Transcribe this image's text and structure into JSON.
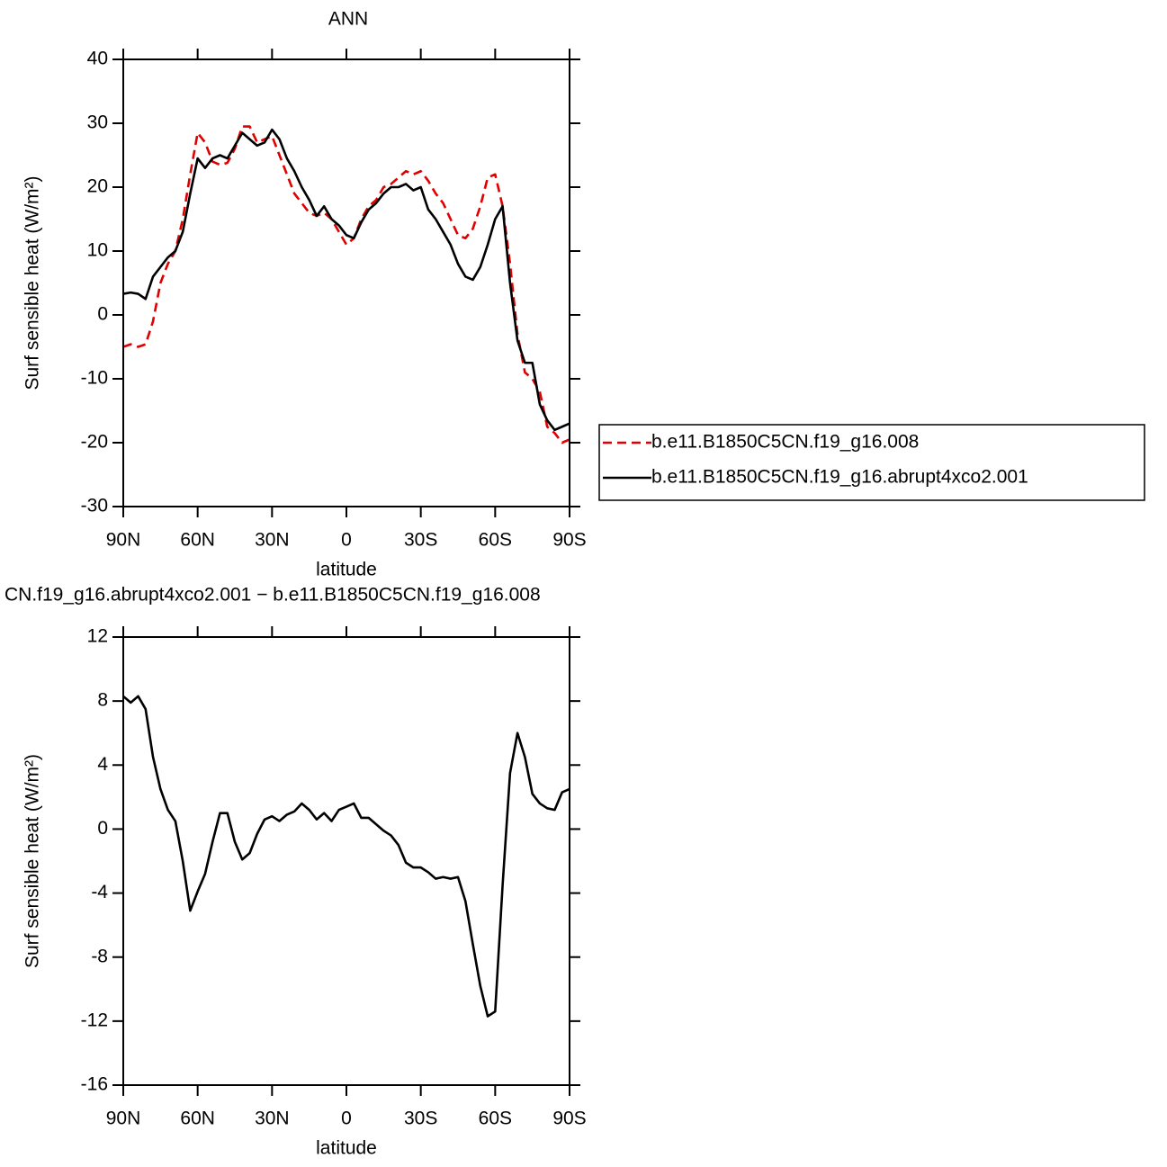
{
  "chart_data": [
    {
      "type": "line",
      "title": "ANN",
      "xlabel": "latitude",
      "ylabel": "Surf sensible heat (W/m²)",
      "x": [
        90,
        87,
        84,
        81,
        78,
        75,
        72,
        69,
        66,
        63,
        60,
        57,
        54,
        51,
        48,
        45,
        42,
        39,
        36,
        33,
        30,
        27,
        24,
        21,
        18,
        15,
        12,
        9,
        6,
        3,
        0,
        -3,
        -6,
        -9,
        -12,
        -15,
        -18,
        -21,
        -24,
        -27,
        -30,
        -33,
        -36,
        -39,
        -42,
        -45,
        -48,
        -51,
        -54,
        -57,
        -60,
        -63,
        -66,
        -69,
        -72,
        -75,
        -78,
        -81,
        -84,
        -87,
        -90
      ],
      "series": [
        {
          "name": "b.e11.B1850C5CN.f19_g16.008",
          "color": "#e00000",
          "style": "dashed",
          "values": [
            -5,
            -4.6,
            -5,
            -4.6,
            -1,
            5,
            8,
            10,
            15,
            22,
            28.5,
            27,
            24,
            23.5,
            23.8,
            26,
            29.5,
            29.5,
            27,
            27.5,
            28,
            25,
            22,
            19,
            17.5,
            16,
            15.5,
            16,
            15,
            13,
            11,
            12,
            15,
            17,
            18,
            20,
            20.5,
            21.5,
            22.5,
            22,
            22.5,
            21,
            19,
            17.5,
            15,
            12.5,
            12,
            13.5,
            17,
            21.5,
            22,
            17,
            8,
            -3,
            -9,
            -10,
            -12,
            -17.5,
            -18.5,
            -20,
            -19.5
          ]
        },
        {
          "name": "b.e11.B1850C5CN.f19_g16.abrupt4xco2.001",
          "color": "#000000",
          "style": "solid",
          "values": [
            3.3,
            3.5,
            3.3,
            2.5,
            6,
            7.5,
            9,
            10,
            13,
            19,
            24.5,
            23,
            24.5,
            25,
            24.5,
            26.5,
            28.5,
            27.5,
            26.5,
            27,
            29,
            27.5,
            24.5,
            22.5,
            20,
            18,
            15.5,
            17,
            15,
            14,
            12.5,
            12,
            14.5,
            16.5,
            17.5,
            19,
            20,
            20,
            20.5,
            19.5,
            20,
            16.5,
            15,
            13,
            11,
            8,
            6,
            5.5,
            7.5,
            11,
            15,
            17,
            5,
            -4,
            -7.5,
            -7.5,
            -14,
            -16.5,
            -18,
            -17.5,
            -17
          ]
        }
      ],
      "xlim": [
        90,
        -90
      ],
      "xticks": [
        {
          "value": 90,
          "label": "90N"
        },
        {
          "value": 60,
          "label": "60N"
        },
        {
          "value": 30,
          "label": "30N"
        },
        0,
        {
          "value": -30,
          "label": "30S"
        },
        {
          "value": -60,
          "label": "60S"
        },
        {
          "value": -90,
          "label": "90S"
        }
      ],
      "ylim": [
        -30,
        40
      ],
      "yticks": [
        -30,
        -20,
        -10,
        0,
        10,
        20,
        30,
        40
      ],
      "legend": "right"
    },
    {
      "type": "line",
      "title": "CN.f19_g16.abrupt4xco2.001 − b.e11.B1850C5CN.f19_g16.008",
      "xlabel": "latitude",
      "ylabel": "Surf sensible heat (W/m²)",
      "x": [
        90,
        87,
        84,
        81,
        78,
        75,
        72,
        69,
        66,
        63,
        60,
        57,
        54,
        51,
        48,
        45,
        42,
        39,
        36,
        33,
        30,
        27,
        24,
        21,
        18,
        15,
        12,
        9,
        6,
        3,
        0,
        -3,
        -6,
        -9,
        -12,
        -15,
        -18,
        -21,
        -24,
        -27,
        -30,
        -33,
        -36,
        -39,
        -42,
        -45,
        -48,
        -51,
        -54,
        -57,
        -60,
        -63,
        -66,
        -69,
        -72,
        -75,
        -78,
        -81,
        -84,
        -87,
        -90
      ],
      "series": [
        {
          "color": "#000000",
          "style": "solid",
          "values": [
            8.3,
            7.9,
            8.3,
            7.5,
            4.5,
            2.5,
            1.2,
            0.5,
            -2,
            -5.1,
            -3.9,
            -2.8,
            -0.8,
            1,
            1,
            -0.8,
            -1.9,
            -1.5,
            -0.3,
            0.6,
            0.8,
            0.5,
            0.9,
            1.1,
            1.6,
            1.2,
            0.6,
            1,
            0.5,
            1.2,
            1.4,
            1.6,
            0.7,
            0.7,
            0.3,
            -0.1,
            -0.4,
            -1,
            -2.1,
            -2.4,
            -2.4,
            -2.7,
            -3.1,
            -3,
            -3.1,
            -3,
            -4.5,
            -7.2,
            -9.8,
            -11.7,
            -11.4,
            -3.5,
            3.5,
            6,
            4.5,
            2.2,
            1.6,
            1.3,
            1.2,
            2.3,
            2.5
          ]
        }
      ],
      "xlim": [
        90,
        -90
      ],
      "xticks": [
        {
          "value": 90,
          "label": "90N"
        },
        {
          "value": 60,
          "label": "60N"
        },
        {
          "value": 30,
          "label": "30N"
        },
        0,
        {
          "value": -30,
          "label": "30S"
        },
        {
          "value": -60,
          "label": "60S"
        },
        {
          "value": -90,
          "label": "90S"
        }
      ],
      "ylim": [
        -16,
        12
      ],
      "yticks": [
        -16,
        -12,
        -8,
        -4,
        0,
        4,
        8,
        12
      ]
    }
  ]
}
